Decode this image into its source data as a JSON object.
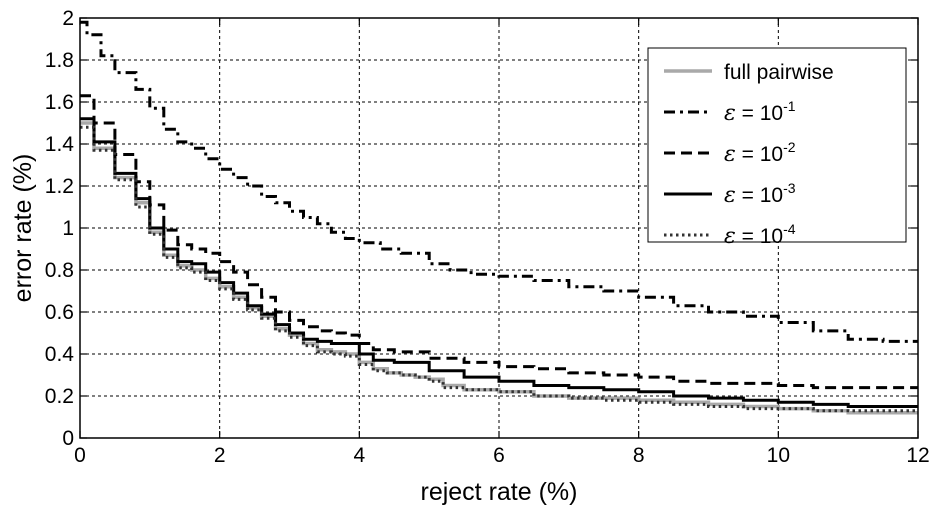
{
  "chart_data": {
    "type": "line",
    "xlabel": "reject rate (%)",
    "ylabel": "error rate (%)",
    "xlim": [
      0,
      12
    ],
    "ylim": [
      0,
      2
    ],
    "xticks": [
      0,
      2,
      4,
      6,
      8,
      10,
      12
    ],
    "yticks": [
      0,
      0.2,
      0.4,
      0.6,
      0.8,
      1,
      1.2,
      1.4,
      1.6,
      1.8,
      2
    ],
    "xtick_labels": [
      "0",
      "2",
      "4",
      "6",
      "8",
      "10",
      "12"
    ],
    "ytick_labels": [
      "0",
      "0.2",
      "0.4",
      "0.6",
      "0.8",
      "1",
      "1.2",
      "1.4",
      "1.6",
      "1.8",
      "2"
    ],
    "grid": true,
    "legend_position": "top-right",
    "series": [
      {
        "name": "full pairwise",
        "legend_symbol": "",
        "legend_text": "full pairwise",
        "legend_exponent": "",
        "color": "#a9a9a9",
        "style": "solid",
        "width": 3.5,
        "x": [
          0,
          0.2,
          0.5,
          0.8,
          1.0,
          1.2,
          1.4,
          1.6,
          1.8,
          2.0,
          2.2,
          2.4,
          2.6,
          2.8,
          3.0,
          3.2,
          3.4,
          3.6,
          3.8,
          4.0,
          4.2,
          4.4,
          4.6,
          4.8,
          5.0,
          5.2,
          5.5,
          6.0,
          6.5,
          7.0,
          7.5,
          8.0,
          8.5,
          9.0,
          9.5,
          10.0,
          10.5,
          11.0,
          11.5,
          12.0
        ],
        "y": [
          1.5,
          1.38,
          1.24,
          1.12,
          0.98,
          0.87,
          0.82,
          0.8,
          0.76,
          0.72,
          0.67,
          0.62,
          0.58,
          0.52,
          0.49,
          0.45,
          0.42,
          0.41,
          0.4,
          0.36,
          0.33,
          0.31,
          0.3,
          0.29,
          0.28,
          0.25,
          0.23,
          0.22,
          0.2,
          0.19,
          0.19,
          0.18,
          0.17,
          0.16,
          0.15,
          0.14,
          0.13,
          0.12,
          0.12,
          0.12
        ]
      },
      {
        "name": "ε = 10-1",
        "legend_symbol": "ε",
        "legend_text": " = 10",
        "legend_exponent": "-1",
        "color": "#000000",
        "style": "dashdot",
        "width": 3,
        "x": [
          0,
          0.1,
          0.3,
          0.5,
          0.8,
          1.0,
          1.2,
          1.4,
          1.6,
          1.8,
          2.0,
          2.2,
          2.4,
          2.6,
          2.8,
          3.0,
          3.2,
          3.4,
          3.6,
          3.8,
          4.0,
          4.3,
          4.6,
          5.0,
          5.3,
          5.6,
          6.0,
          6.5,
          7.0,
          7.5,
          8.0,
          8.5,
          9.0,
          9.5,
          10.0,
          10.5,
          11.0,
          11.5,
          12.0
        ],
        "y": [
          1.98,
          1.92,
          1.82,
          1.74,
          1.66,
          1.57,
          1.47,
          1.41,
          1.38,
          1.33,
          1.28,
          1.24,
          1.2,
          1.15,
          1.12,
          1.08,
          1.05,
          1.02,
          0.98,
          0.95,
          0.93,
          0.9,
          0.88,
          0.83,
          0.8,
          0.78,
          0.77,
          0.75,
          0.72,
          0.7,
          0.67,
          0.63,
          0.6,
          0.58,
          0.55,
          0.51,
          0.47,
          0.46,
          0.46
        ]
      },
      {
        "name": "ε = 10-2",
        "legend_symbol": "ε",
        "legend_text": " = 10",
        "legend_exponent": "-2",
        "color": "#000000",
        "style": "dashed",
        "width": 3,
        "x": [
          0,
          0.2,
          0.5,
          0.8,
          1.0,
          1.2,
          1.4,
          1.6,
          1.8,
          2.0,
          2.2,
          2.4,
          2.6,
          2.8,
          3.0,
          3.2,
          3.4,
          3.6,
          3.8,
          4.0,
          4.2,
          4.5,
          5.0,
          5.5,
          6.0,
          6.5,
          7.0,
          7.5,
          8.0,
          8.5,
          9.0,
          9.5,
          10.0,
          10.5,
          11.0,
          11.5,
          12.0
        ],
        "y": [
          1.63,
          1.5,
          1.35,
          1.22,
          1.11,
          0.99,
          0.92,
          0.9,
          0.88,
          0.84,
          0.79,
          0.73,
          0.67,
          0.6,
          0.56,
          0.53,
          0.51,
          0.5,
          0.49,
          0.45,
          0.42,
          0.41,
          0.38,
          0.36,
          0.34,
          0.33,
          0.31,
          0.3,
          0.29,
          0.27,
          0.26,
          0.26,
          0.25,
          0.24,
          0.24,
          0.24,
          0.24
        ]
      },
      {
        "name": "ε = 10-3",
        "legend_symbol": "ε",
        "legend_text": " = 10",
        "legend_exponent": "-3",
        "color": "#000000",
        "style": "solid",
        "width": 3,
        "x": [
          0,
          0.2,
          0.5,
          0.8,
          1.0,
          1.2,
          1.4,
          1.6,
          1.8,
          2.0,
          2.2,
          2.4,
          2.6,
          2.8,
          3.0,
          3.2,
          3.4,
          3.6,
          3.8,
          4.0,
          4.2,
          4.5,
          5.0,
          5.5,
          6.0,
          6.5,
          7.0,
          7.5,
          8.0,
          8.5,
          9.0,
          9.5,
          10.0,
          10.5,
          11.0,
          11.5,
          12.0
        ],
        "y": [
          1.52,
          1.41,
          1.26,
          1.14,
          1.0,
          0.9,
          0.84,
          0.83,
          0.79,
          0.74,
          0.69,
          0.63,
          0.59,
          0.54,
          0.5,
          0.47,
          0.46,
          0.45,
          0.45,
          0.4,
          0.37,
          0.36,
          0.32,
          0.29,
          0.27,
          0.25,
          0.24,
          0.23,
          0.22,
          0.2,
          0.19,
          0.18,
          0.17,
          0.16,
          0.15,
          0.15,
          0.15
        ]
      },
      {
        "name": "ε = 10-4",
        "legend_symbol": "ε",
        "legend_text": " = 10",
        "legend_exponent": "-4",
        "color": "#333333",
        "style": "dotted",
        "width": 3,
        "x": [
          0,
          0.2,
          0.5,
          0.8,
          1.0,
          1.2,
          1.4,
          1.6,
          1.8,
          2.0,
          2.2,
          2.4,
          2.6,
          2.8,
          3.0,
          3.2,
          3.4,
          3.6,
          3.8,
          4.0,
          4.2,
          4.4,
          4.6,
          4.8,
          5.0,
          5.2,
          5.5,
          6.0,
          6.5,
          7.0,
          7.5,
          8.0,
          8.5,
          9.0,
          9.5,
          10.0,
          10.5,
          11.0,
          11.5,
          12.0
        ],
        "y": [
          1.48,
          1.37,
          1.23,
          1.1,
          0.97,
          0.86,
          0.81,
          0.79,
          0.75,
          0.71,
          0.66,
          0.61,
          0.57,
          0.51,
          0.48,
          0.44,
          0.41,
          0.4,
          0.39,
          0.35,
          0.32,
          0.31,
          0.3,
          0.29,
          0.27,
          0.24,
          0.23,
          0.22,
          0.2,
          0.19,
          0.18,
          0.17,
          0.16,
          0.15,
          0.14,
          0.14,
          0.13,
          0.13,
          0.13,
          0.13
        ]
      }
    ]
  }
}
